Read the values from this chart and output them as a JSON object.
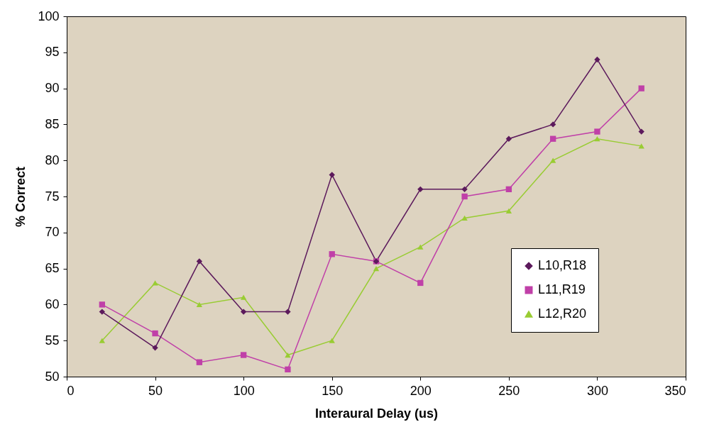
{
  "chart_data": {
    "type": "line",
    "xlabel": "Interaural Delay (us)",
    "ylabel": "% Correct",
    "x": [
      20,
      50,
      75,
      100,
      125,
      150,
      175,
      200,
      225,
      250,
      275,
      300,
      325
    ],
    "xlim": [
      0,
      350
    ],
    "xticks": [
      0,
      50,
      100,
      150,
      200,
      250,
      300,
      350
    ],
    "ylim": [
      50,
      100
    ],
    "yticks": [
      50,
      55,
      60,
      65,
      70,
      75,
      80,
      85,
      90,
      95,
      100
    ],
    "grid": false,
    "legend": "right",
    "series": [
      {
        "name": "L10,R18",
        "color": "#5c1a5c",
        "marker": "diamond",
        "values": [
          59,
          54,
          66,
          59,
          59,
          78,
          66,
          76,
          76,
          83,
          85,
          94,
          84
        ]
      },
      {
        "name": "L11,R19",
        "color": "#c040a8",
        "marker": "square",
        "values": [
          60,
          56,
          52,
          53,
          51,
          67,
          66,
          63,
          75,
          76,
          83,
          84,
          90
        ]
      },
      {
        "name": "L12,R20",
        "color": "#99cc33",
        "marker": "triangle",
        "values": [
          55,
          63,
          60,
          61,
          53,
          55,
          65,
          68,
          72,
          73,
          80,
          83,
          82
        ]
      }
    ]
  }
}
